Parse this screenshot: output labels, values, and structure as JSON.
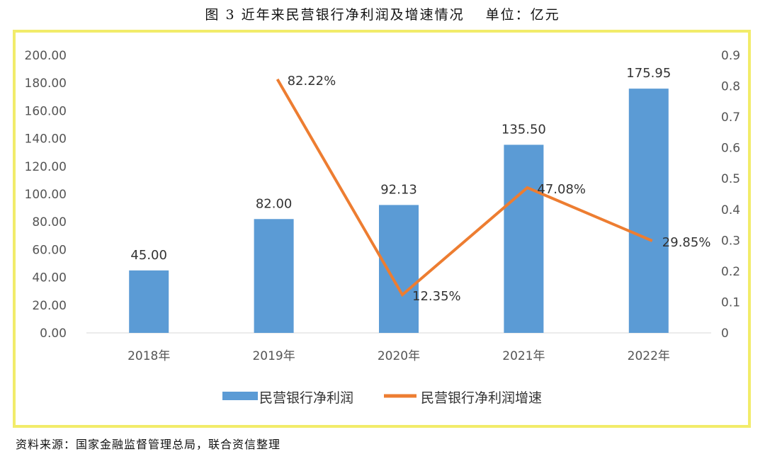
{
  "header": {
    "title": "图 3   近年来民营银行净利润及增速情况",
    "unit": "单位：亿元"
  },
  "source": "资料来源：国家金融监督管理总局，联合资信整理",
  "colors": {
    "bar": "#5b9bd5",
    "line": "#ed7d31",
    "frame": "#f2ec6a"
  },
  "chart_data": {
    "type": "bar",
    "title": "近年来民营银行净利润及增速情况",
    "categories": [
      "2018年",
      "2019年",
      "2020年",
      "2021年",
      "2022年"
    ],
    "series": [
      {
        "name": "民营银行净利润",
        "type": "bar",
        "axis": "left",
        "values": [
          45.0,
          82.0,
          92.13,
          135.5,
          175.95
        ],
        "labels": [
          "45.00",
          "82.00",
          "92.13",
          "135.50",
          "175.95"
        ]
      },
      {
        "name": "民营银行净利润增速",
        "type": "line",
        "axis": "right",
        "values": [
          null,
          0.8222,
          0.1235,
          0.4708,
          0.2985
        ],
        "labels": [
          "",
          "82.22%",
          "12.35%",
          "47.08%",
          "29.85%"
        ]
      }
    ],
    "y_left": {
      "min": 0,
      "max": 200,
      "step": 20,
      "ticks": [
        "0.00",
        "20.00",
        "40.00",
        "60.00",
        "80.00",
        "100.00",
        "120.00",
        "140.00",
        "160.00",
        "180.00",
        "200.00"
      ]
    },
    "y_right": {
      "min": 0,
      "max": 0.9,
      "step": 0.1,
      "ticks": [
        "0",
        "0.1",
        "0.2",
        "0.3",
        "0.4",
        "0.5",
        "0.6",
        "0.7",
        "0.8",
        "0.9"
      ]
    },
    "legend": {
      "position": "bottom",
      "items": [
        "民营银行净利润",
        "民营银行净利润增速"
      ]
    },
    "grid": false
  }
}
